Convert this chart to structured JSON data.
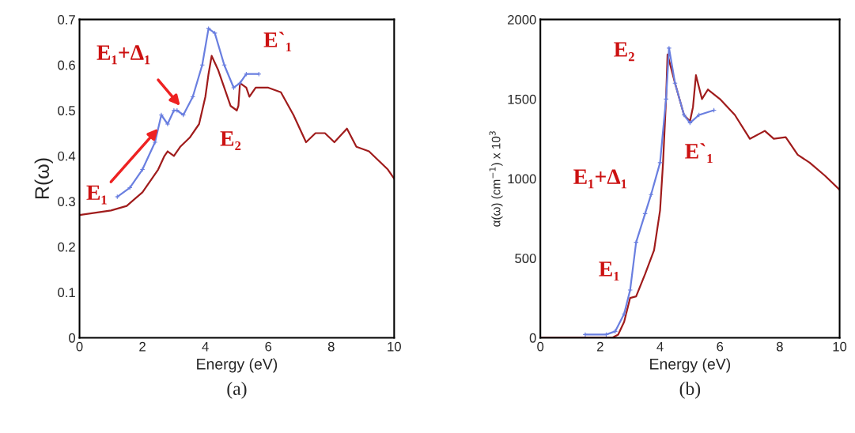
{
  "chart_data": [
    {
      "type": "line",
      "title": "(a)",
      "xlabel": "Energy (eV)",
      "ylabel": "R(ω)",
      "xlim": [
        0,
        10
      ],
      "ylim": [
        0,
        0.7
      ],
      "xticks": [
        0,
        2,
        4,
        6,
        8,
        10
      ],
      "yticks": [
        0,
        0.1,
        0.2,
        0.3,
        0.4,
        0.5,
        0.6,
        0.7
      ],
      "grid": false,
      "series": [
        {
          "color": "#a01c1c",
          "marker": "none",
          "x": [
            0,
            1,
            1.5,
            2,
            2.5,
            2.7,
            2.8,
            3.0,
            3.2,
            3.5,
            3.8,
            4.0,
            4.1,
            4.2,
            4.4,
            4.6,
            4.8,
            5.0,
            5.05,
            5.1,
            5.3,
            5.4,
            5.6,
            6.0,
            6.4,
            6.8,
            7.2,
            7.5,
            7.8,
            8.1,
            8.5,
            8.8,
            9.2,
            9.5,
            9.8,
            10
          ],
          "values": [
            0.27,
            0.28,
            0.29,
            0.32,
            0.37,
            0.4,
            0.41,
            0.4,
            0.42,
            0.44,
            0.47,
            0.53,
            0.58,
            0.62,
            0.59,
            0.55,
            0.51,
            0.5,
            0.51,
            0.56,
            0.55,
            0.53,
            0.55,
            0.55,
            0.54,
            0.49,
            0.43,
            0.45,
            0.45,
            0.43,
            0.46,
            0.42,
            0.41,
            0.39,
            0.37,
            0.35
          ]
        },
        {
          "color": "#6a7fe0",
          "marker": "cross",
          "x": [
            1.2,
            1.6,
            2.0,
            2.4,
            2.6,
            2.8,
            3.0,
            3.1,
            3.3,
            3.6,
            3.9,
            4.1,
            4.3,
            4.6,
            4.9,
            5.1,
            5.3,
            5.7
          ],
          "values": [
            0.31,
            0.33,
            0.37,
            0.43,
            0.49,
            0.47,
            0.5,
            0.5,
            0.49,
            0.53,
            0.6,
            0.68,
            0.67,
            0.6,
            0.55,
            0.56,
            0.58,
            0.58
          ]
        }
      ],
      "annotations": [
        {
          "text": "E₁+Δ₁",
          "x": 3.2,
          "y": 0.51
        },
        {
          "text": "E₁",
          "x": 2.5,
          "y": 0.46
        },
        "E₂",
        "E`₁"
      ]
    },
    {
      "type": "line",
      "title": "(b)",
      "xlabel": "Energy (eV)",
      "ylabel": "α(ω) (cm$^{−1}$) x 10$^{3}$",
      "xlim": [
        0,
        10
      ],
      "ylim": [
        0,
        2000
      ],
      "xticks": [
        0,
        2,
        4,
        6,
        8,
        10
      ],
      "yticks": [
        0,
        500,
        1000,
        1500,
        2000
      ],
      "grid": false,
      "series": [
        {
          "color": "#a01c1c",
          "marker": "none",
          "x": [
            0,
            2.4,
            2.6,
            2.8,
            3.0,
            3.2,
            3.5,
            3.8,
            4.0,
            4.1,
            4.2,
            4.25,
            4.5,
            4.8,
            5.0,
            5.1,
            5.2,
            5.4,
            5.6,
            6.0,
            6.5,
            7.0,
            7.5,
            7.8,
            8.2,
            8.6,
            9.0,
            9.5,
            10
          ],
          "values": [
            0,
            0,
            20,
            100,
            250,
            260,
            400,
            550,
            800,
            1100,
            1500,
            1780,
            1600,
            1400,
            1360,
            1450,
            1650,
            1500,
            1560,
            1500,
            1400,
            1250,
            1300,
            1250,
            1260,
            1150,
            1100,
            1020,
            930
          ]
        },
        {
          "color": "#6a7fe0",
          "marker": "cross",
          "x": [
            1.5,
            2.2,
            2.5,
            2.8,
            3.0,
            3.2,
            3.5,
            3.7,
            4.0,
            4.2,
            4.3,
            4.5,
            4.8,
            5.0,
            5.3,
            5.8
          ],
          "values": [
            20,
            20,
            40,
            150,
            300,
            600,
            780,
            900,
            1100,
            1500,
            1820,
            1600,
            1400,
            1350,
            1400,
            1430
          ]
        }
      ],
      "annotations": [
        "E₂",
        "E₁+Δ₁",
        "E₁",
        "E`₁"
      ]
    }
  ]
}
